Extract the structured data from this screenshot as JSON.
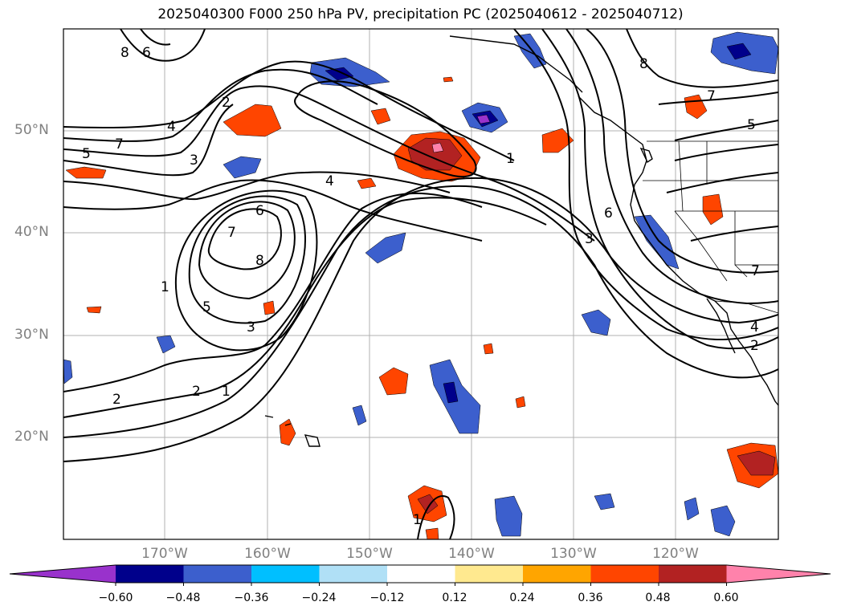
{
  "title": "2025040300 F000 250 hPa PV, precipitation PC (2025040612 - 2025040712)",
  "lat_labels": [
    "50°N",
    "40°N",
    "30°N",
    "20°N"
  ],
  "lon_labels": [
    "170°W",
    "160°W",
    "150°W",
    "140°W",
    "130°W",
    "120°W"
  ],
  "contour_labels": [
    "8",
    "6",
    "2",
    "4",
    "7",
    "5",
    "3",
    "7",
    "6",
    "8",
    "5",
    "3",
    "2",
    "1",
    "2",
    "1",
    "4",
    "7",
    "6",
    "3",
    "5",
    "7",
    "8",
    "4",
    "2",
    "1",
    "1"
  ],
  "colorbar": {
    "ticks": [
      "−0.60",
      "−0.48",
      "−0.36",
      "−0.24",
      "−0.12",
      "0.12",
      "0.24",
      "0.36",
      "0.48",
      "0.60"
    ],
    "colors": [
      "#9932cc",
      "#00008b",
      "#3c5fcd",
      "#00bfff",
      "#b0e0f6",
      "#ffffff",
      "#ffe98f",
      "#ffa500",
      "#ff4500",
      "#b22222",
      "#ff82ab"
    ]
  },
  "colors": {
    "grid": "#b0b0b0",
    "contour": "#000000",
    "tick_label": "#808080"
  }
}
